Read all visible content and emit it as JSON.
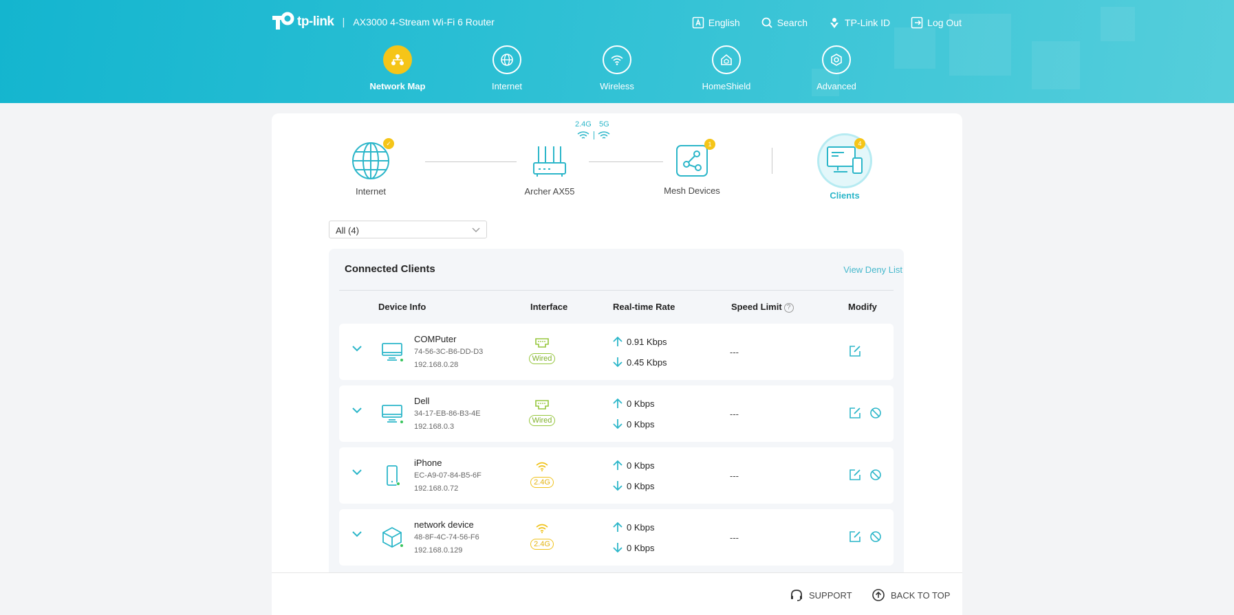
{
  "header": {
    "brand": "tp-link",
    "model": "AX3000 4-Stream Wi-Fi 6 Router",
    "links": [
      {
        "label": "English",
        "icon": "language-icon"
      },
      {
        "label": "Search",
        "icon": "search-icon"
      },
      {
        "label": "TP-Link ID",
        "icon": "tplink-id-icon"
      },
      {
        "label": "Log Out",
        "icon": "logout-icon"
      }
    ],
    "nav": [
      {
        "label": "Network Map",
        "icon": "network-map-icon",
        "active": true
      },
      {
        "label": "Internet",
        "icon": "globe-icon",
        "active": false
      },
      {
        "label": "Wireless",
        "icon": "wifi-icon",
        "active": false
      },
      {
        "label": "HomeShield",
        "icon": "homeshield-icon",
        "active": false
      },
      {
        "label": "Advanced",
        "icon": "gear-icon",
        "active": false
      }
    ]
  },
  "topology": {
    "internet": {
      "label": "Internet",
      "status": "check"
    },
    "router": {
      "label": "Archer AX55",
      "band_24": "2.4G",
      "band_5": "5G"
    },
    "mesh": {
      "label": "Mesh Devices",
      "badge": "1"
    },
    "clients": {
      "label": "Clients",
      "badge": "4"
    }
  },
  "filter": {
    "selected": "All (4)"
  },
  "clients_panel": {
    "title": "Connected Clients",
    "deny_list_link": "View Deny List",
    "columns": {
      "device_info": "Device Info",
      "interface": "Interface",
      "rate": "Real-time Rate",
      "speed_limit": "Speed Limit",
      "modify": "Modify"
    },
    "rows": [
      {
        "name": "COMPuter",
        "mac": "74-56-3C-B6-DD-D3",
        "ip": "192.168.0.28",
        "type": "computer",
        "interface": "Wired",
        "up": "0.91 Kbps",
        "down": "0.45 Kbps",
        "speed_limit": "---",
        "can_block": false
      },
      {
        "name": "Dell",
        "mac": "34-17-EB-86-B3-4E",
        "ip": "192.168.0.3",
        "type": "computer",
        "interface": "Wired",
        "up": "0 Kbps",
        "down": "0 Kbps",
        "speed_limit": "---",
        "can_block": true
      },
      {
        "name": "iPhone",
        "mac": "EC-A9-07-84-B5-6F",
        "ip": "192.168.0.72",
        "type": "phone",
        "interface": "2.4G",
        "up": "0 Kbps",
        "down": "0 Kbps",
        "speed_limit": "---",
        "can_block": true
      },
      {
        "name": "network device",
        "mac": "48-8F-4C-74-56-F6",
        "ip": "192.168.0.129",
        "type": "device",
        "interface": "2.4G",
        "up": "0 Kbps",
        "down": "0 Kbps",
        "speed_limit": "---",
        "can_block": true
      }
    ]
  },
  "footer": {
    "support": "SUPPORT",
    "back_to_top": "BACK TO TOP"
  },
  "colors": {
    "accent": "#2bb6c9",
    "active_nav": "#f5c518",
    "wired": "#95c63b",
    "wireless": "#f0c21a"
  }
}
